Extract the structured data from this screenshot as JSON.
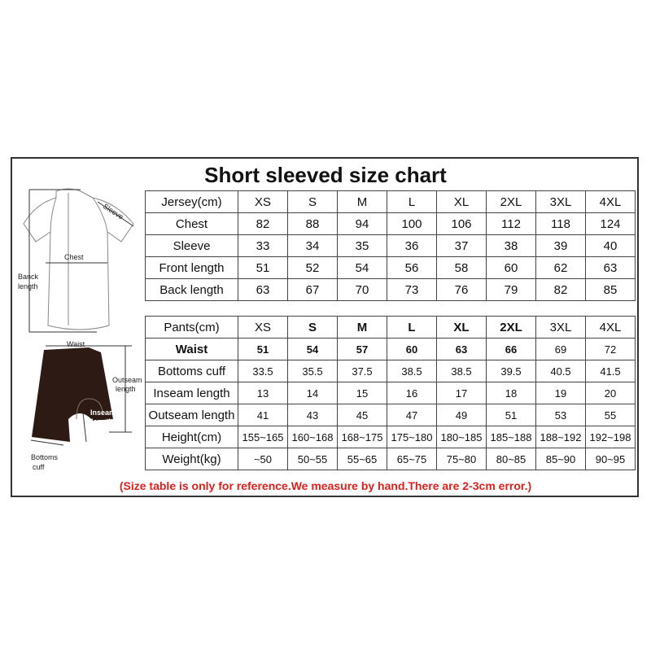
{
  "title": "Short sleeved size chart",
  "jersey_table": {
    "header": [
      "Jersey(cm)",
      "XS",
      "S",
      "M",
      "L",
      "XL",
      "2XL",
      "3XL",
      "4XL"
    ],
    "rows": [
      [
        "Chest",
        "82",
        "88",
        "94",
        "100",
        "106",
        "112",
        "118",
        "124"
      ],
      [
        "Sleeve",
        "33",
        "34",
        "35",
        "36",
        "37",
        "38",
        "39",
        "40"
      ],
      [
        "Front length",
        "51",
        "52",
        "54",
        "56",
        "58",
        "60",
        "62",
        "63"
      ],
      [
        "Back length",
        "63",
        "67",
        "70",
        "73",
        "76",
        "79",
        "82",
        "85"
      ]
    ]
  },
  "pants_table": {
    "header": [
      "Pants(cm)",
      "XS",
      "S",
      "M",
      "L",
      "XL",
      "2XL",
      "3XL",
      "4XL"
    ],
    "rows": [
      [
        "Waist",
        "51",
        "54",
        "57",
        "60",
        "63",
        "66",
        "69",
        "72"
      ],
      [
        "Bottoms cuff",
        "33.5",
        "35.5",
        "37.5",
        "38.5",
        "38.5",
        "39.5",
        "40.5",
        "41.5"
      ],
      [
        "Inseam length",
        "13",
        "14",
        "15",
        "16",
        "17",
        "18",
        "19",
        "20"
      ],
      [
        "Outseam length",
        "41",
        "43",
        "45",
        "47",
        "49",
        "51",
        "53",
        "55"
      ],
      [
        "Height(cm)",
        "155~165",
        "160~168",
        "168~175",
        "175~180",
        "180~185",
        "185~188",
        "188~192",
        "192~198"
      ],
      [
        "Weight(kg)",
        "~50",
        "50~55",
        "55~65",
        "65~75",
        "75~80",
        "80~85",
        "85~90",
        "90~95"
      ]
    ]
  },
  "figure_labels": {
    "sleeve": "Sleeve",
    "chest": "Chest",
    "back_length_1": "Banck",
    "back_length_2": "length",
    "waist": "Waist",
    "outseam_1": "Outseam",
    "outseam_2": "length",
    "inseam_1": "Inseam",
    "inseam_2": "length",
    "cuff_1": "Bottoms",
    "cuff_2": "cuff"
  },
  "note": "(Size table is only for reference.We measure by hand.There are 2-3cm error.)",
  "colors": {
    "note": "#e0201c",
    "shorts": "#2e1a14"
  }
}
